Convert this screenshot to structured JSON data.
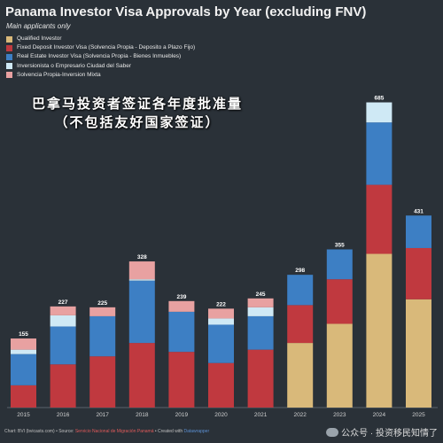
{
  "chart_data": {
    "type": "bar",
    "stacked": true,
    "title": "Panama Investor Visa Approvals by Year (excluding FNV)",
    "subtitle": "Main applicants only",
    "categories": [
      "2015",
      "2016",
      "2017",
      "2018",
      "2019",
      "2020",
      "2021",
      "2022",
      "2023",
      "2024",
      "2025"
    ],
    "totals": [
      155,
      227,
      225,
      328,
      239,
      222,
      245,
      298,
      355,
      685,
      431
    ],
    "ylim": [
      0,
      700
    ],
    "legend_position": "top-left",
    "series": [
      {
        "name": "Qualified Investor",
        "color": "#d9b97a",
        "values": [
          0,
          0,
          0,
          0,
          0,
          0,
          0,
          145,
          188,
          345,
          243
        ]
      },
      {
        "name": "Fixed Deposit Investor Visa (Solvencia Propia - Deposito a Plazo Fijo)",
        "color": "#c0393f",
        "values": [
          50,
          97,
          115,
          145,
          125,
          100,
          130,
          85,
          100,
          155,
          115
        ]
      },
      {
        "name": "Real Estate Investor Visa (Solvencia Propia - Bienes Inmuebles)",
        "color": "#3d7fc4",
        "values": [
          70,
          85,
          90,
          140,
          90,
          86,
          75,
          68,
          67,
          140,
          73
        ]
      },
      {
        "name": "Inversionista o Empresario Ciudad del Saber",
        "color": "#cfe9f5",
        "values": [
          10,
          25,
          0,
          3,
          0,
          14,
          20,
          0,
          0,
          45,
          0
        ]
      },
      {
        "name": "Solvencia Propia-Inversion Mixta",
        "color": "#e8a1a1",
        "values": [
          25,
          20,
          20,
          40,
          24,
          22,
          20,
          0,
          0,
          0,
          0
        ]
      }
    ]
  },
  "zh_title": {
    "line1": "巴拿马投资者签证各年度批准量",
    "line2": "（不包括友好国家签证）"
  },
  "footer": {
    "part1": "Chart: BVI (bvicasts.com) • Source: ",
    "source": "Servicio Nacional de Migración Panamá",
    "part2": " • Created with ",
    "tool": "Datawrapper"
  },
  "watermark": "公众号 · 投资移民知情了"
}
